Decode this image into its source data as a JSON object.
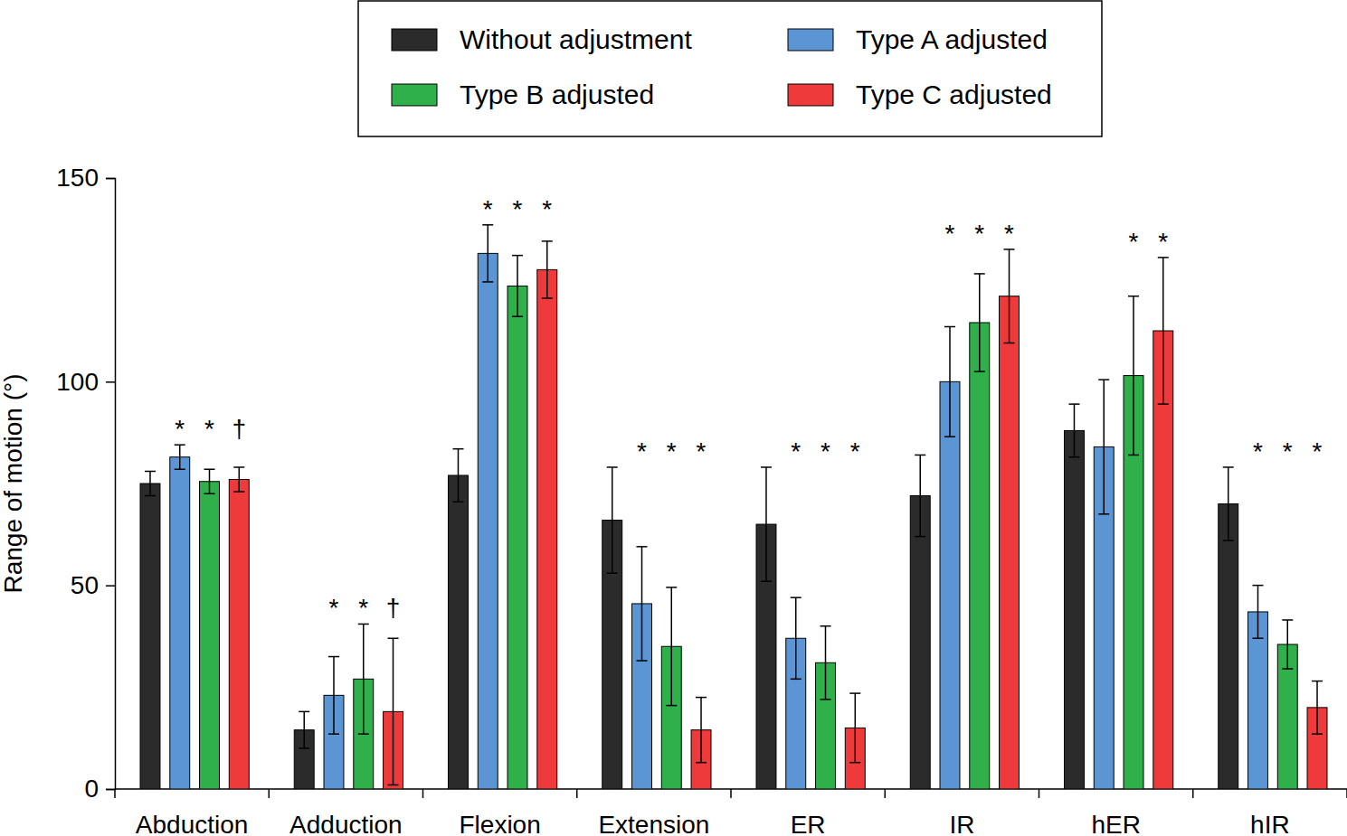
{
  "chart_data": {
    "type": "bar",
    "y_label": "Range of motion (°)",
    "categories": [
      "Abduction",
      "Adduction",
      "Flexion",
      "Extension",
      "ER",
      "IR",
      "hER",
      "hIR"
    ],
    "series": [
      {
        "name": "Without adjustment",
        "color": "#2b2b2b",
        "values": [
          75,
          14.5,
          77,
          66,
          65,
          72,
          88,
          70
        ],
        "errors": [
          3,
          4.5,
          6.5,
          13,
          14,
          10,
          6.5,
          9
        ]
      },
      {
        "name": "Type A adjusted",
        "color": "#5b95d3",
        "values": [
          81.5,
          23,
          131.5,
          45.5,
          37,
          100,
          84,
          43.5
        ],
        "errors": [
          3,
          9.5,
          7,
          14,
          10,
          13.5,
          16.5,
          6.5
        ],
        "significance": [
          "*",
          "*",
          "*",
          "*",
          "*",
          "*",
          null,
          "*"
        ]
      },
      {
        "name": "Type B adjusted",
        "color": "#2fb04a",
        "values": [
          75.5,
          27,
          123.5,
          35,
          31,
          114.5,
          101.5,
          35.5
        ],
        "errors": [
          3,
          13.5,
          7.5,
          14.5,
          9,
          12,
          19.5,
          6
        ],
        "significance": [
          "*",
          "*",
          "*",
          "*",
          "*",
          "*",
          "*",
          "*"
        ]
      },
      {
        "name": "Type C adjusted",
        "color": "#ee3a3a",
        "values": [
          76,
          19,
          127.5,
          14.5,
          15,
          121,
          112.5,
          20
        ],
        "errors": [
          3,
          18,
          7,
          8,
          8.5,
          11.5,
          18,
          6.5
        ],
        "significance": [
          "†",
          "†",
          "*",
          "*",
          "*",
          "*",
          "*",
          "*"
        ]
      }
    ],
    "ylim": [
      0,
      150
    ],
    "yticks": [
      0,
      50,
      100,
      150
    ],
    "grid": false,
    "legend": "top"
  }
}
